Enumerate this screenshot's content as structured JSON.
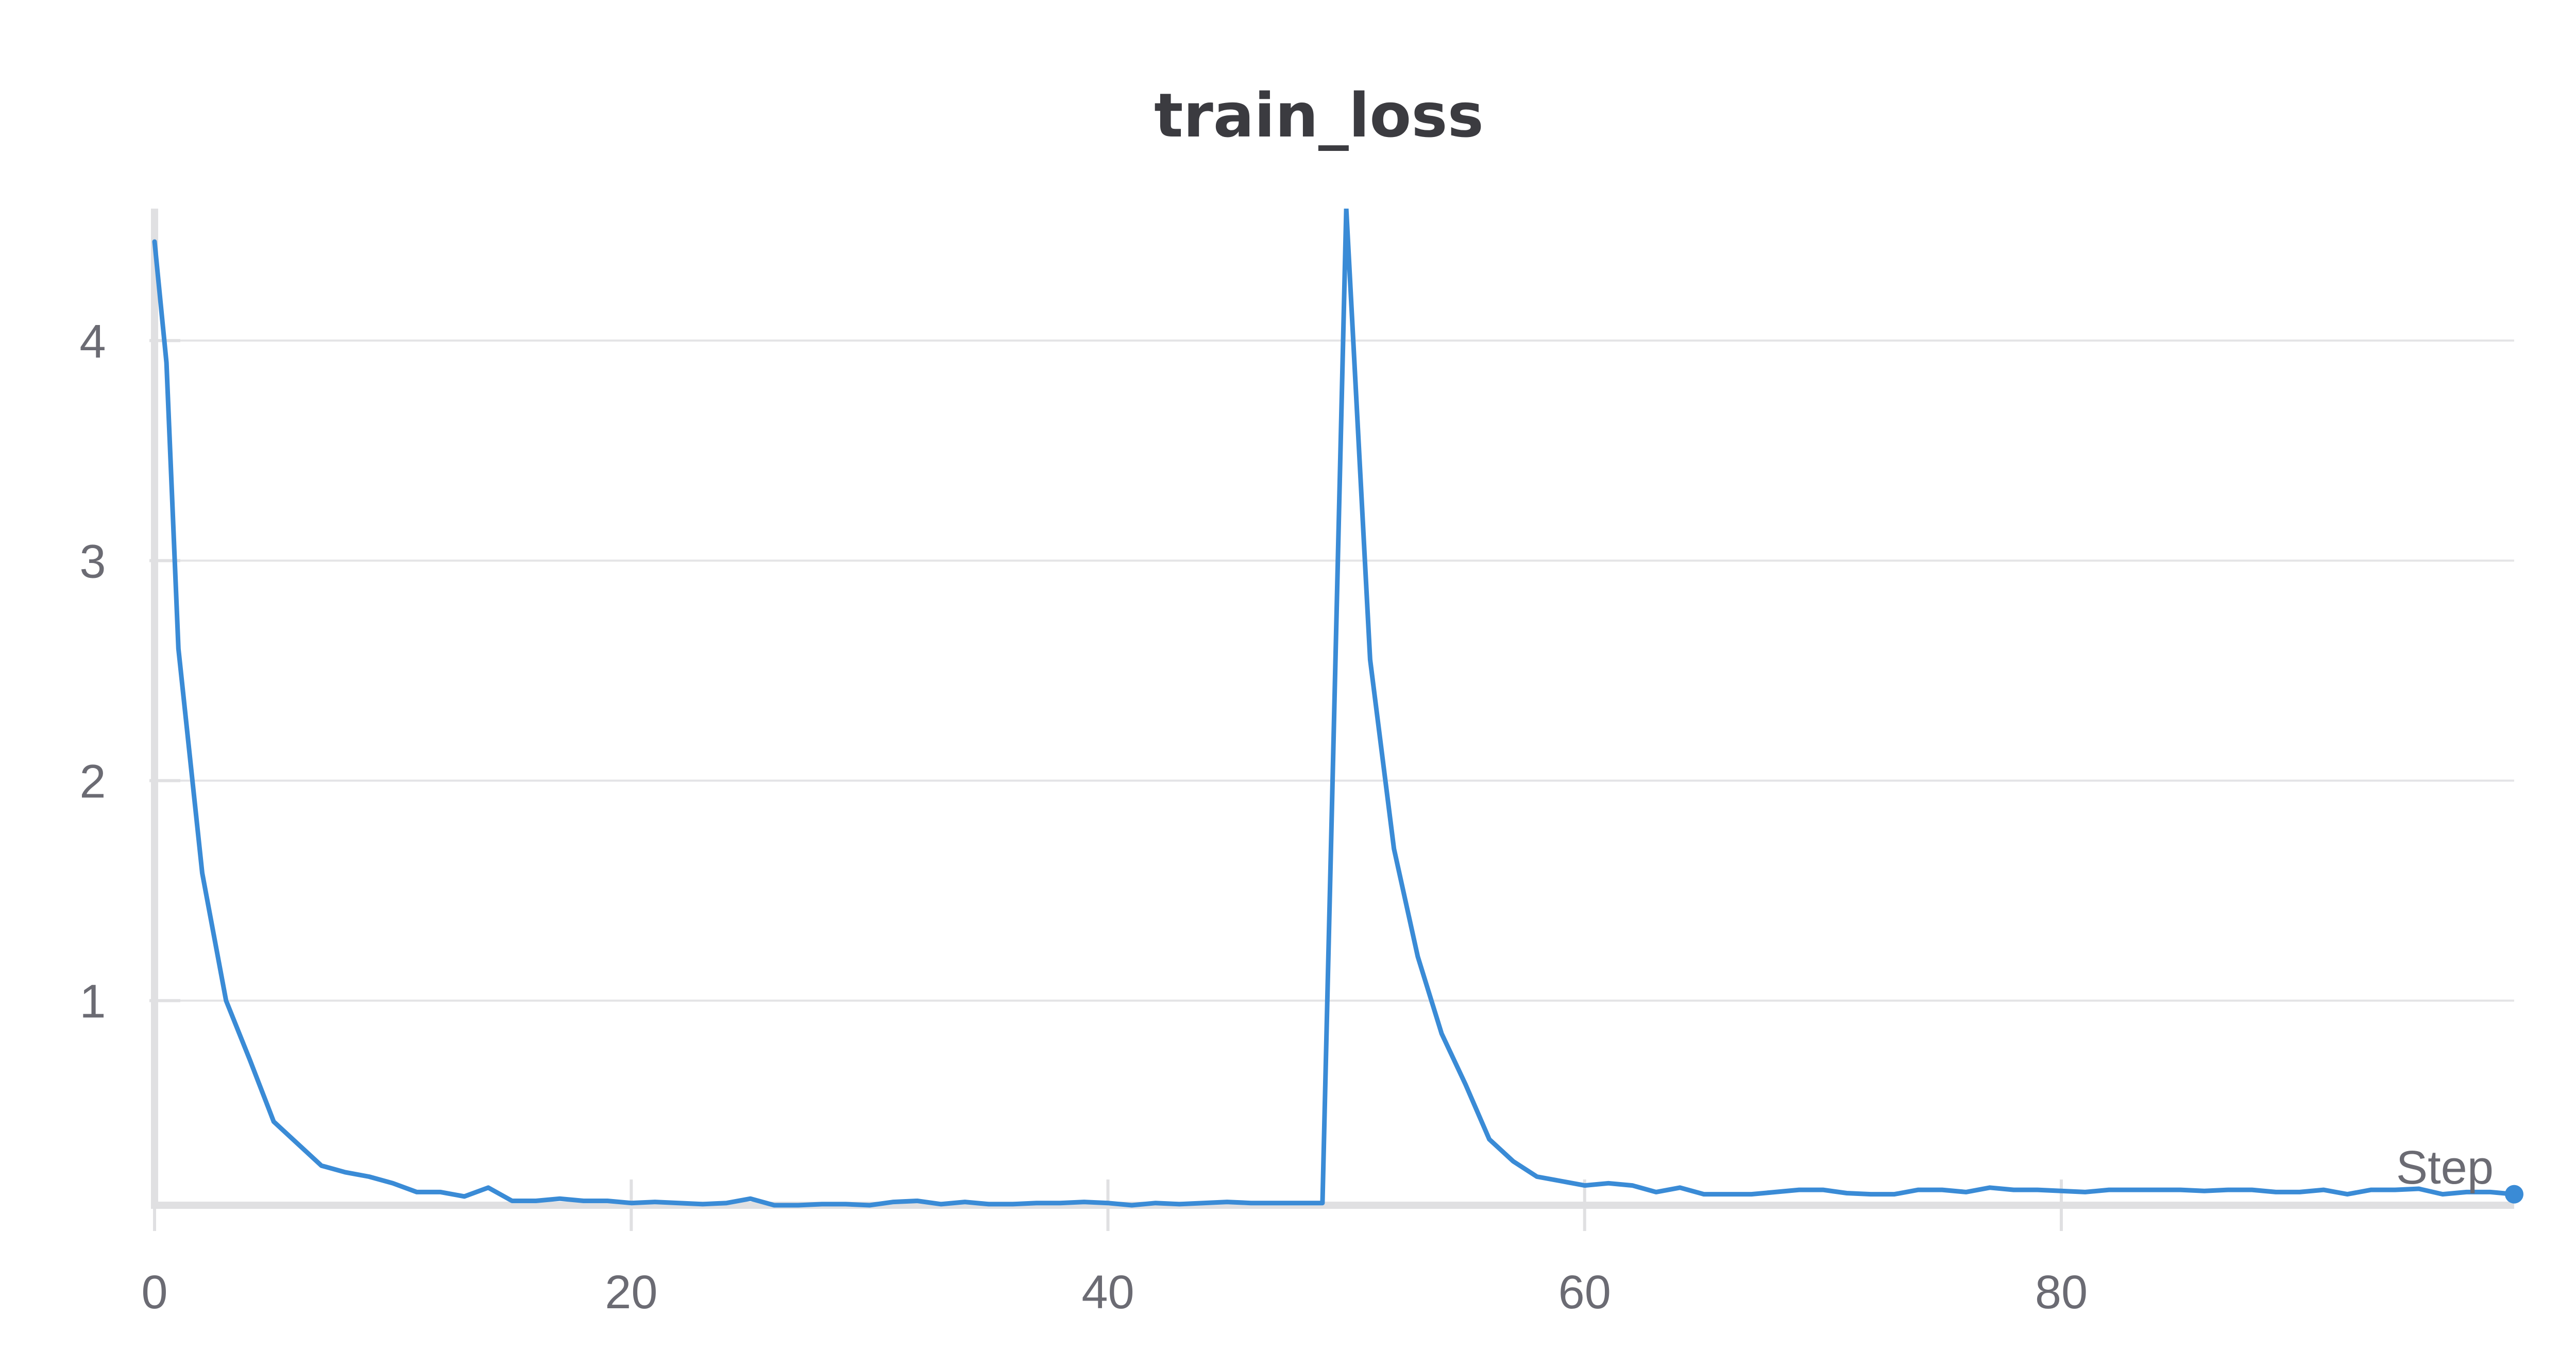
{
  "chart_data": {
    "type": "line",
    "title": "train_loss",
    "xlabel": "Step",
    "ylabel": "",
    "xlim": [
      0,
      99
    ],
    "ylim": [
      0.07,
      4.6
    ],
    "x_ticks": [
      0,
      20,
      40,
      60,
      80
    ],
    "y_ticks": [
      1,
      2,
      3,
      4
    ],
    "grid": true,
    "colors": {
      "line": "#3a8bd6",
      "grid": "#e4e4e6",
      "axis": "#e0e0e2",
      "text": "#6b6b73",
      "title": "#3b3b40"
    },
    "series": [
      {
        "values": [
          [
            0,
            4.45
          ],
          [
            0.5,
            3.9
          ],
          [
            1,
            2.6
          ],
          [
            2,
            1.58
          ],
          [
            3,
            1.0
          ],
          [
            4,
            0.73
          ],
          [
            5,
            0.45
          ],
          [
            6,
            0.35
          ],
          [
            7,
            0.25
          ],
          [
            8,
            0.22
          ],
          [
            9,
            0.2
          ],
          [
            10,
            0.17
          ],
          [
            11,
            0.13
          ],
          [
            12,
            0.13
          ],
          [
            13,
            0.11
          ],
          [
            14,
            0.15
          ],
          [
            15,
            0.09
          ],
          [
            16,
            0.09
          ],
          [
            17,
            0.1
          ],
          [
            18,
            0.09
          ],
          [
            19,
            0.09
          ],
          [
            20,
            0.08
          ],
          [
            21,
            0.085
          ],
          [
            22,
            0.08
          ],
          [
            23,
            0.075
          ],
          [
            24,
            0.08
          ],
          [
            25,
            0.1
          ],
          [
            26,
            0.07
          ],
          [
            27,
            0.07
          ],
          [
            28,
            0.075
          ],
          [
            29,
            0.075
          ],
          [
            30,
            0.07
          ],
          [
            31,
            0.085
          ],
          [
            32,
            0.09
          ],
          [
            33,
            0.075
          ],
          [
            34,
            0.085
          ],
          [
            35,
            0.075
          ],
          [
            36,
            0.075
          ],
          [
            37,
            0.08
          ],
          [
            38,
            0.08
          ],
          [
            39,
            0.085
          ],
          [
            40,
            0.08
          ],
          [
            41,
            0.07
          ],
          [
            42,
            0.08
          ],
          [
            43,
            0.075
          ],
          [
            44,
            0.08
          ],
          [
            45,
            0.085
          ],
          [
            46,
            0.08
          ],
          [
            47,
            0.08
          ],
          [
            48,
            0.08
          ],
          [
            49,
            0.08
          ],
          [
            50,
            4.6
          ],
          [
            51,
            2.55
          ],
          [
            52,
            1.69
          ],
          [
            53,
            1.2
          ],
          [
            54,
            0.85
          ],
          [
            55,
            0.62
          ],
          [
            56,
            0.37
          ],
          [
            57,
            0.27
          ],
          [
            58,
            0.2
          ],
          [
            59,
            0.18
          ],
          [
            60,
            0.16
          ],
          [
            61,
            0.17
          ],
          [
            62,
            0.16
          ],
          [
            63,
            0.13
          ],
          [
            64,
            0.15
          ],
          [
            65,
            0.12
          ],
          [
            66,
            0.12
          ],
          [
            67,
            0.12
          ],
          [
            68,
            0.13
          ],
          [
            69,
            0.14
          ],
          [
            70,
            0.14
          ],
          [
            71,
            0.125
          ],
          [
            72,
            0.12
          ],
          [
            73,
            0.12
          ],
          [
            74,
            0.14
          ],
          [
            75,
            0.14
          ],
          [
            76,
            0.13
          ],
          [
            77,
            0.15
          ],
          [
            78,
            0.14
          ],
          [
            79,
            0.14
          ],
          [
            80,
            0.135
          ],
          [
            81,
            0.13
          ],
          [
            82,
            0.14
          ],
          [
            83,
            0.14
          ],
          [
            84,
            0.14
          ],
          [
            85,
            0.14
          ],
          [
            86,
            0.135
          ],
          [
            87,
            0.14
          ],
          [
            88,
            0.14
          ],
          [
            89,
            0.13
          ],
          [
            90,
            0.13
          ],
          [
            91,
            0.14
          ],
          [
            92,
            0.12
          ],
          [
            93,
            0.14
          ],
          [
            94,
            0.14
          ],
          [
            95,
            0.145
          ],
          [
            96,
            0.12
          ],
          [
            97,
            0.13
          ],
          [
            98,
            0.13
          ],
          [
            99,
            0.12
          ]
        ]
      }
    ],
    "end_marker": true
  }
}
